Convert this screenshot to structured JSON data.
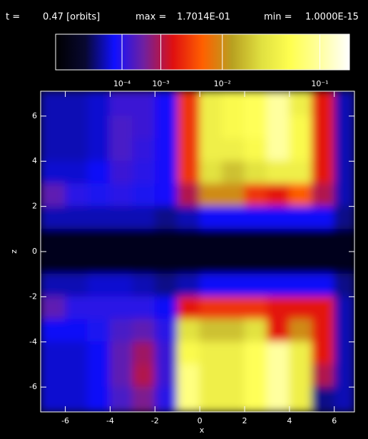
{
  "chart_data": {
    "type": "heatmap",
    "time_label": "t =",
    "time": {
      "value": 0.47,
      "label": "0.47 [orbits]"
    },
    "max_label": "max =",
    "max": {
      "value": 0.17014,
      "label": "1.7014E-01"
    },
    "min_label": "min =",
    "min": {
      "value": 1e-15,
      "label": "1.0000E-15"
    },
    "color_scale": "power",
    "color_exponent": 0.2,
    "colormap": [
      "#000000",
      "#080830",
      "#1010ff",
      "#7020a0",
      "#e01010",
      "#ff6000",
      "#b8a020",
      "#e0e040",
      "#ffff50",
      "#ffffa0",
      "#ffffff"
    ],
    "colorbar_ticks": [
      {
        "value": 0.0001,
        "label": "10⁻⁴"
      },
      {
        "value": 0.001,
        "label": "10⁻³"
      },
      {
        "value": 0.01,
        "label": "10⁻²"
      },
      {
        "value": 0.1,
        "label": "10⁻¹"
      }
    ],
    "x_label": "x",
    "y_label": "z",
    "xlim": [
      -7.1,
      6.9
    ],
    "ylim": [
      -7.1,
      7.1
    ],
    "xticks": [
      -6,
      -4,
      -2,
      0,
      2,
      4,
      6
    ],
    "yticks": [
      -6,
      -4,
      -2,
      0,
      2,
      4,
      6
    ],
    "x_edges": [
      -7.1,
      -6,
      -5,
      -4,
      -3,
      -2,
      -1,
      0,
      1,
      2,
      3,
      4,
      5,
      6,
      6.9
    ],
    "z_edges": [
      7.1,
      6,
      5,
      4,
      3,
      2,
      1,
      0,
      -1,
      -2,
      -3,
      -4,
      -5,
      -6,
      -7.1
    ],
    "values": [
      [
        2e-05,
        2e-05,
        3e-05,
        0.00015,
        0.00015,
        6e-05,
        0.003,
        0.04,
        0.05,
        0.06,
        0.1,
        0.04,
        0.002,
        2e-05
      ],
      [
        2e-05,
        2e-05,
        3e-05,
        0.0002,
        0.00015,
        6e-05,
        0.003,
        0.04,
        0.05,
        0.06,
        0.1,
        0.05,
        0.002,
        2e-05
      ],
      [
        2e-05,
        2e-05,
        3e-05,
        0.0002,
        0.00012,
        6e-05,
        0.003,
        0.04,
        0.04,
        0.05,
        0.1,
        0.05,
        0.002,
        2e-05
      ],
      [
        3e-05,
        3e-05,
        5e-05,
        0.00015,
        0.0001,
        6e-05,
        0.003,
        0.03,
        0.02,
        0.03,
        0.04,
        0.04,
        0.002,
        2e-05
      ],
      [
        0.0003,
        0.0001,
        8e-05,
        0.0001,
        8e-05,
        6e-05,
        0.001,
        0.01,
        0.01,
        0.003,
        0.002,
        0.005,
        0.001,
        2e-05
      ],
      [
        2e-05,
        2e-05,
        2e-05,
        2e-05,
        2e-05,
        1e-05,
        2e-05,
        5e-05,
        5e-05,
        5e-05,
        5e-05,
        5e-05,
        5e-05,
        1e-05
      ],
      [
        1e-07,
        1e-07,
        1e-07,
        1e-07,
        1e-07,
        1e-07,
        1e-07,
        1e-07,
        1e-07,
        1e-07,
        1e-07,
        1e-07,
        1e-07,
        1e-07
      ],
      [
        1e-07,
        1e-07,
        1e-07,
        1e-07,
        1e-07,
        1e-07,
        1e-07,
        1e-07,
        1e-07,
        1e-07,
        1e-07,
        1e-07,
        1e-07,
        1e-07
      ],
      [
        2e-05,
        2e-05,
        3e-05,
        3e-05,
        2e-05,
        1e-05,
        2e-05,
        5e-05,
        5e-05,
        5e-05,
        5e-05,
        5e-05,
        5e-05,
        1e-05
      ],
      [
        0.0003,
        0.0001,
        0.0001,
        0.0001,
        0.0001,
        5e-05,
        0.002,
        0.003,
        0.003,
        0.003,
        0.002,
        0.002,
        0.002,
        2e-05
      ],
      [
        5e-05,
        5e-05,
        8e-05,
        0.0002,
        0.0003,
        0.0001,
        0.03,
        0.02,
        0.02,
        0.03,
        0.002,
        0.01,
        0.002,
        2e-05
      ],
      [
        3e-05,
        3e-05,
        5e-05,
        0.0003,
        0.0008,
        0.00015,
        0.05,
        0.04,
        0.04,
        0.06,
        0.1,
        0.04,
        0.002,
        2e-05
      ],
      [
        3e-05,
        3e-05,
        5e-05,
        0.0003,
        0.001,
        0.00015,
        0.08,
        0.04,
        0.04,
        0.06,
        0.1,
        0.04,
        0.001,
        2e-05
      ],
      [
        3e-05,
        3e-05,
        5e-05,
        0.0002,
        0.0005,
        0.0001,
        0.08,
        0.04,
        0.04,
        0.06,
        0.1,
        0.04,
        1e-05,
        2e-05
      ]
    ]
  }
}
